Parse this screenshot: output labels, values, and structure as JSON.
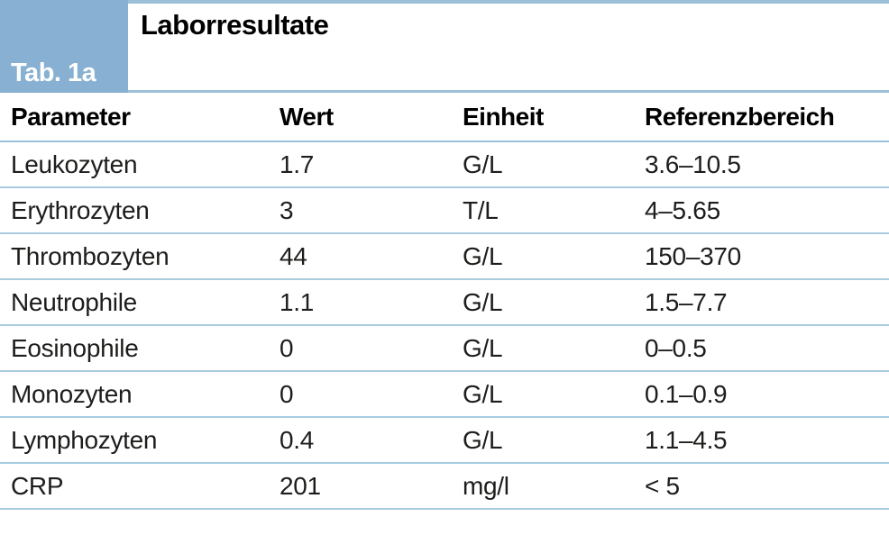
{
  "figure": {
    "tab_label": "Tab. 1a",
    "title": "Laborresultate"
  },
  "colors": {
    "box-blue": "#87b0d2",
    "line-blue": "#9cc0d8",
    "row-line-blue": "#a9cce0",
    "text-black": "#1d1d1b",
    "bg-white": "#ffffff"
  },
  "table": {
    "columns": [
      "Parameter",
      "Wert",
      "Einheit",
      "Referenzbereich"
    ],
    "rows": [
      {
        "parameter": "Leukozyten",
        "wert": "1.7",
        "einheit": "G/L",
        "referenzbereich": "3.6–10.5"
      },
      {
        "parameter": "Erythrozyten",
        "wert": "3",
        "einheit": "T/L",
        "referenzbereich": "4–5.65"
      },
      {
        "parameter": "Thrombozyten",
        "wert": "44",
        "einheit": "G/L",
        "referenzbereich": "150–370"
      },
      {
        "parameter": "Neutrophile",
        "wert": "1.1",
        "einheit": "G/L",
        "referenzbereich": "1.5–7.7"
      },
      {
        "parameter": "Eosinophile",
        "wert": "0",
        "einheit": "G/L",
        "referenzbereich": "0–0.5"
      },
      {
        "parameter": "Monozyten",
        "wert": "0",
        "einheit": "G/L",
        "referenzbereich": "0.1–0.9"
      },
      {
        "parameter": "Lymphozyten",
        "wert": "0.4",
        "einheit": "G/L",
        "referenzbereich": "1.1–4.5"
      },
      {
        "parameter": "CRP",
        "wert": "201",
        "einheit": "mg/l",
        "referenzbereich": "< 5"
      }
    ]
  }
}
